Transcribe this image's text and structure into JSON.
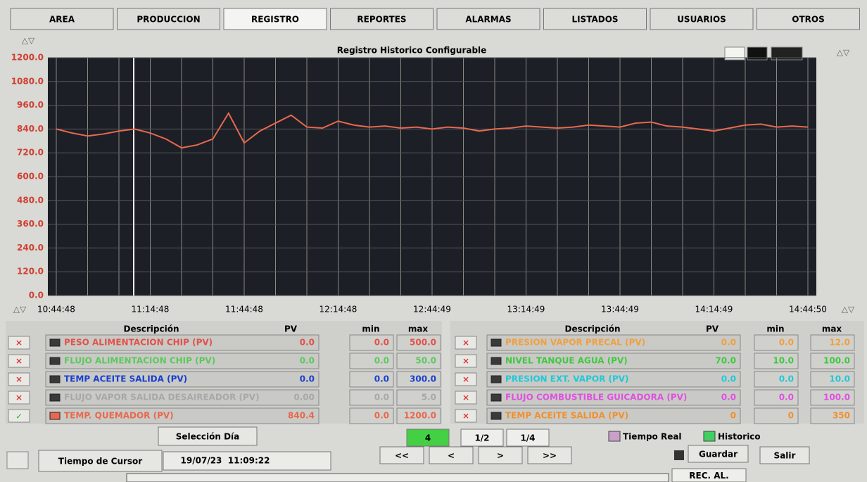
{
  "tabs": [
    "AREA",
    "PRODUCCION",
    "REGISTRO",
    "REPORTES",
    "ALARMAS",
    "LISTADOS",
    "USUARIOS",
    "OTROS"
  ],
  "chart_data": {
    "type": "line",
    "title": "Registro Historico Configurable",
    "categories": [
      "10:44:48",
      null,
      null,
      null,
      null,
      null,
      "11:14:48",
      null,
      null,
      null,
      null,
      null,
      "11:44:48",
      null,
      null,
      null,
      null,
      null,
      "12:14:48",
      null,
      null,
      null,
      null,
      null,
      "12:44:49",
      null,
      null,
      null,
      null,
      null,
      "13:14:49",
      null,
      null,
      null,
      null,
      null,
      "13:44:49",
      null,
      null,
      null,
      null,
      null,
      "14:14:49",
      null,
      null,
      null,
      null,
      null,
      "14:44:50"
    ],
    "series": [
      {
        "name": "TEMP. QUEMADOR (PV)",
        "color": "#e8684e",
        "values": [
          840,
          820,
          805,
          815,
          830,
          840,
          820,
          790,
          745,
          760,
          790,
          920,
          770,
          830,
          870,
          910,
          850,
          845,
          880,
          860,
          850,
          855,
          845,
          850,
          840,
          850,
          845,
          830,
          840,
          845,
          855,
          850,
          845,
          850,
          860,
          855,
          850,
          870,
          875,
          855,
          850,
          840,
          830,
          845,
          860,
          865,
          850,
          855,
          850
        ]
      }
    ],
    "ylim": [
      0,
      1200
    ],
    "yticks": [
      {
        "value": 0,
        "label": "0.0"
      },
      {
        "value": 120,
        "label": "120.0"
      },
      {
        "value": 240,
        "label": "240.0"
      },
      {
        "value": 360,
        "label": "360.0"
      },
      {
        "value": 480,
        "label": "480.0"
      },
      {
        "value": 600,
        "label": "600.0"
      },
      {
        "value": 720,
        "label": "720.0"
      },
      {
        "value": 840,
        "label": "840.0"
      },
      {
        "value": 960,
        "label": "960.0"
      },
      {
        "value": 1080,
        "label": "1080.0"
      },
      {
        "value": 1200,
        "label": "1200.0"
      }
    ],
    "grid": true
  },
  "pens_left": {
    "headers": [
      "Descripción",
      "PV",
      "min",
      "max"
    ],
    "rows": [
      {
        "description": "PESO ALIMENTACION CHIP (PV)",
        "pv": "0.0",
        "min": "0.0",
        "max": "500.0",
        "color": "#e0524a"
      },
      {
        "description": "FLUJO ALIMENTACION CHIP (PV)",
        "pv": "0.0",
        "min": "0.0",
        "max": "50.0",
        "color": "#5cc85c"
      },
      {
        "description": "TEMP ACEITE SALIDA (PV)",
        "pv": "0.0",
        "min": "0.0",
        "max": "300.0",
        "color": "#1a3fd0"
      },
      {
        "description": "FLUJO VAPOR SALIDA DESAIREADOR (PV)",
        "pv": "0.00",
        "min": "0.0",
        "max": "5.0",
        "color": "#a8a8a8"
      },
      {
        "description": "TEMP. QUEMADOR (PV)",
        "pv": "840.4",
        "min": "0.0",
        "max": "1200.0",
        "color": "#e8684e"
      }
    ]
  },
  "pens_right": {
    "headers": [
      "Descripción",
      "PV",
      "min",
      "max"
    ],
    "rows": [
      {
        "description": "PRESION VAPOR PRECAL (PV)",
        "pv": "0.0",
        "min": "0.0",
        "max": "12.0",
        "color": "#f0a040"
      },
      {
        "description": "NIVEL TANQUE AGUA (PV)",
        "pv": "70.0",
        "min": "10.0",
        "max": "100.0",
        "color": "#40c840"
      },
      {
        "description": "PRESION EXT. VAPOR (PV)",
        "pv": "0.0",
        "min": "0.0",
        "max": "10.0",
        "color": "#20c8d8"
      },
      {
        "description": "FLUJO COMBUSTIBLE GUICADORA (PV)",
        "pv": "0.0",
        "min": "0.0",
        "max": "100.0",
        "color": "#e050e0"
      },
      {
        "description": "TEMP ACEITE SALIDA (PV)",
        "pv": "0",
        "min": "0",
        "max": "350",
        "color": "#f09030"
      }
    ]
  },
  "controls": {
    "select_day": "Selección Día",
    "zoom": [
      "4",
      "1/2",
      "1/4"
    ],
    "real_time": "Tiempo Real",
    "historic": "Historico",
    "cursor_time_label": "Tiempo de Cursor",
    "cursor_time": "19/07/23  11:09:22",
    "nav": [
      "<<",
      "<",
      ">",
      ">>"
    ],
    "save": "Guardar",
    "exit": "Salir",
    "rec": "REC. AL."
  }
}
